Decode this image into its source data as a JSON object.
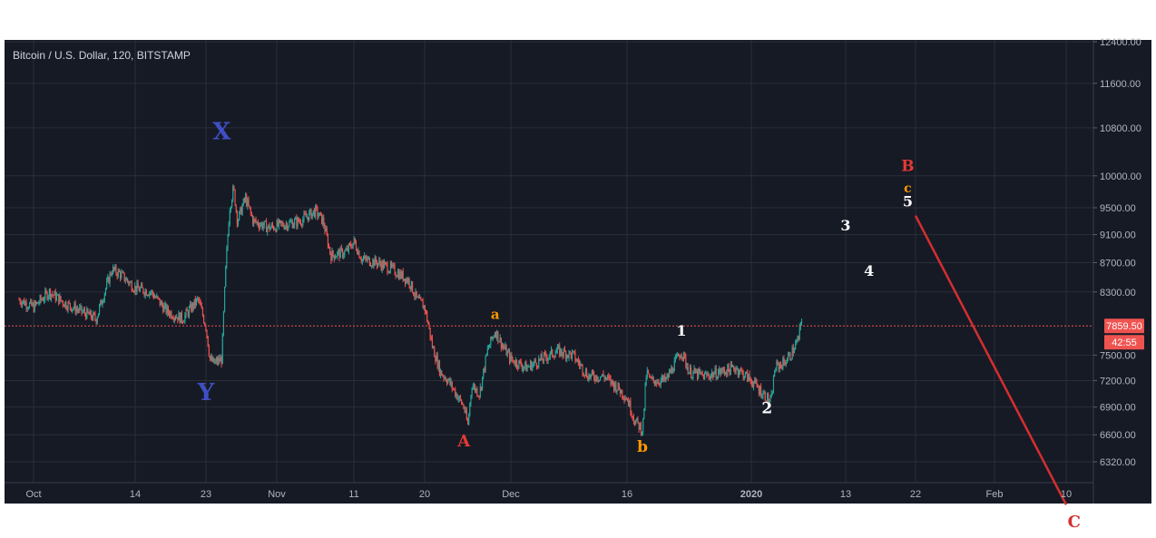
{
  "chart_title": "Bitcoin / U.S. Dollar, 120, BITSTAMP",
  "colors": {
    "background": "#161a25",
    "grid": "#2a2e39",
    "up": "#26a69a",
    "down": "#ef5350",
    "price_line": "#ef5350",
    "countdown_bg": "#ef5350",
    "projection_line": "#d32f2f"
  },
  "price_label": "7859.50",
  "countdown": "42:55",
  "chart_data": {
    "type": "candlestick",
    "title": "Bitcoin / U.S. Dollar, 120, BITSTAMP",
    "ylim": [
      6100,
      12500
    ],
    "x_ticks": [
      {
        "date": "2019-10-01",
        "label": "Oct",
        "bold": false
      },
      {
        "date": "2019-10-14",
        "label": "14",
        "bold": false
      },
      {
        "date": "2019-10-23",
        "label": "23",
        "bold": false
      },
      {
        "date": "2019-11-01",
        "label": "Nov",
        "bold": false
      },
      {
        "date": "2019-11-11",
        "label": "11",
        "bold": false
      },
      {
        "date": "2019-11-20",
        "label": "20",
        "bold": false
      },
      {
        "date": "2019-12-01",
        "label": "Dec",
        "bold": false
      },
      {
        "date": "2019-12-16",
        "label": "16",
        "bold": false
      },
      {
        "date": "2020-01-01",
        "label": "2020",
        "bold": true
      },
      {
        "date": "2020-01-13",
        "label": "13",
        "bold": false
      },
      {
        "date": "2020-01-22",
        "label": "22",
        "bold": false
      },
      {
        "date": "2020-02-01",
        "label": "Feb",
        "bold": false
      },
      {
        "date": "2020-02-10",
        "label": "10",
        "bold": false
      }
    ],
    "y_ticks": [
      "6320.00",
      "6600.00",
      "6900.00",
      "7200.00",
      "7500.00",
      "8300.00",
      "8700.00",
      "9100.00",
      "9500.00",
      "10000.00",
      "10800.00",
      "11600.00",
      "12400.00"
    ],
    "last_price": 7859.5,
    "price_path": [
      {
        "date": "2019-09-29",
        "price": 8200
      },
      {
        "date": "2019-10-01",
        "price": 8100
      },
      {
        "date": "2019-10-03",
        "price": 8300
      },
      {
        "date": "2019-10-05",
        "price": 8150
      },
      {
        "date": "2019-10-07",
        "price": 8050
      },
      {
        "date": "2019-10-09",
        "price": 7950
      },
      {
        "date": "2019-10-11",
        "price": 8600
      },
      {
        "date": "2019-10-12",
        "price": 8550
      },
      {
        "date": "2019-10-14",
        "price": 8350
      },
      {
        "date": "2019-10-16",
        "price": 8300
      },
      {
        "date": "2019-10-18",
        "price": 8050
      },
      {
        "date": "2019-10-20",
        "price": 7950
      },
      {
        "date": "2019-10-22",
        "price": 8200
      },
      {
        "date": "2019-10-23",
        "price": 7850
      },
      {
        "date": "2019-10-23T12:00",
        "price": 7450
      },
      {
        "date": "2019-10-24",
        "price": 7400
      },
      {
        "date": "2019-10-25",
        "price": 7450
      },
      {
        "date": "2019-10-25T12:00",
        "price": 8600
      },
      {
        "date": "2019-10-26",
        "price": 9500
      },
      {
        "date": "2019-10-26T12:00",
        "price": 9800
      },
      {
        "date": "2019-10-27",
        "price": 9300
      },
      {
        "date": "2019-10-28",
        "price": 9650
      },
      {
        "date": "2019-10-29",
        "price": 9300
      },
      {
        "date": "2019-10-31",
        "price": 9200
      },
      {
        "date": "2019-11-02",
        "price": 9250
      },
      {
        "date": "2019-11-04",
        "price": 9300
      },
      {
        "date": "2019-11-06",
        "price": 9450
      },
      {
        "date": "2019-11-07",
        "price": 9300
      },
      {
        "date": "2019-11-08",
        "price": 8800
      },
      {
        "date": "2019-11-10",
        "price": 8850
      },
      {
        "date": "2019-11-11",
        "price": 9000
      },
      {
        "date": "2019-11-12",
        "price": 8750
      },
      {
        "date": "2019-11-14",
        "price": 8700
      },
      {
        "date": "2019-11-16",
        "price": 8600
      },
      {
        "date": "2019-11-18",
        "price": 8450
      },
      {
        "date": "2019-11-19",
        "price": 8200
      },
      {
        "date": "2019-11-20",
        "price": 8100
      },
      {
        "date": "2019-11-21",
        "price": 7600
      },
      {
        "date": "2019-11-22",
        "price": 7300
      },
      {
        "date": "2019-11-23",
        "price": 7200
      },
      {
        "date": "2019-11-24",
        "price": 7050
      },
      {
        "date": "2019-11-25",
        "price": 6900
      },
      {
        "date": "2019-11-25T12:00",
        "price": 6700
      },
      {
        "date": "2019-11-26",
        "price": 7150
      },
      {
        "date": "2019-11-27",
        "price": 7050
      },
      {
        "date": "2019-11-28",
        "price": 7550
      },
      {
        "date": "2019-11-29",
        "price": 7800
      },
      {
        "date": "2019-11-30",
        "price": 7600
      },
      {
        "date": "2019-12-01",
        "price": 7450
      },
      {
        "date": "2019-12-03",
        "price": 7350
      },
      {
        "date": "2019-12-05",
        "price": 7450
      },
      {
        "date": "2019-12-07",
        "price": 7550
      },
      {
        "date": "2019-12-09",
        "price": 7500
      },
      {
        "date": "2019-12-11",
        "price": 7250
      },
      {
        "date": "2019-12-13",
        "price": 7250
      },
      {
        "date": "2019-12-15",
        "price": 7100
      },
      {
        "date": "2019-12-16",
        "price": 7000
      },
      {
        "date": "2019-12-17",
        "price": 6750
      },
      {
        "date": "2019-12-18",
        "price": 6650
      },
      {
        "date": "2019-12-18T12:00",
        "price": 7300
      },
      {
        "date": "2019-12-19",
        "price": 7200
      },
      {
        "date": "2019-12-21",
        "price": 7200
      },
      {
        "date": "2019-12-23",
        "price": 7550
      },
      {
        "date": "2019-12-24",
        "price": 7300
      },
      {
        "date": "2019-12-26",
        "price": 7250
      },
      {
        "date": "2019-12-28",
        "price": 7300
      },
      {
        "date": "2019-12-30",
        "price": 7350
      },
      {
        "date": "2020-01-01",
        "price": 7200
      },
      {
        "date": "2020-01-03",
        "price": 7000
      },
      {
        "date": "2020-01-03T12:00",
        "price": 6950
      },
      {
        "date": "2020-01-04",
        "price": 7350
      },
      {
        "date": "2020-01-05",
        "price": 7400
      },
      {
        "date": "2020-01-06",
        "price": 7500
      },
      {
        "date": "2020-01-07",
        "price": 7700
      },
      {
        "date": "2020-01-07T12:00",
        "price": 8000
      }
    ],
    "projection_line": {
      "from": {
        "date": "2020-01-22",
        "price": 9380
      },
      "to": {
        "date": "2020-02-10",
        "price": 5900
      }
    },
    "wave_labels": [
      {
        "text": "X",
        "date": "2019-10-25",
        "price": 10600,
        "color": "#3f4fc4",
        "size": 26
      },
      {
        "text": "Y",
        "date": "2019-10-23",
        "price": 6980,
        "color": "#3f4fc4",
        "size": 26
      },
      {
        "text": "A",
        "date": "2019-11-25",
        "price": 6480,
        "color": "#e53935",
        "size": 18
      },
      {
        "text": "a",
        "date": "2019-11-29",
        "price": 7950,
        "color": "#ff9800",
        "size": 15
      },
      {
        "text": "b",
        "date": "2019-12-18",
        "price": 6420,
        "color": "#ff9800",
        "size": 17
      },
      {
        "text": "1",
        "date": "2019-12-23",
        "price": 7740,
        "color": "#ffffff",
        "size": 16
      },
      {
        "text": "2",
        "date": "2020-01-03",
        "price": 6830,
        "color": "#ffffff",
        "size": 17
      },
      {
        "text": "3",
        "date": "2020-01-13",
        "price": 9160,
        "color": "#ffffff",
        "size": 16
      },
      {
        "text": "4",
        "date": "2020-01-16",
        "price": 8520,
        "color": "#ffffff",
        "size": 16
      },
      {
        "text": "B",
        "date": "2020-01-21",
        "price": 10080,
        "color": "#e53935",
        "size": 17
      },
      {
        "text": "c",
        "date": "2020-01-21",
        "price": 9740,
        "color": "#ff9800",
        "size": 14
      },
      {
        "text": "5",
        "date": "2020-01-21",
        "price": 9520,
        "color": "#ffffff",
        "size": 16
      },
      {
        "text": "C",
        "date": "2020-02-11",
        "price": 5690,
        "color": "#d32f2f",
        "size": 18
      }
    ]
  }
}
